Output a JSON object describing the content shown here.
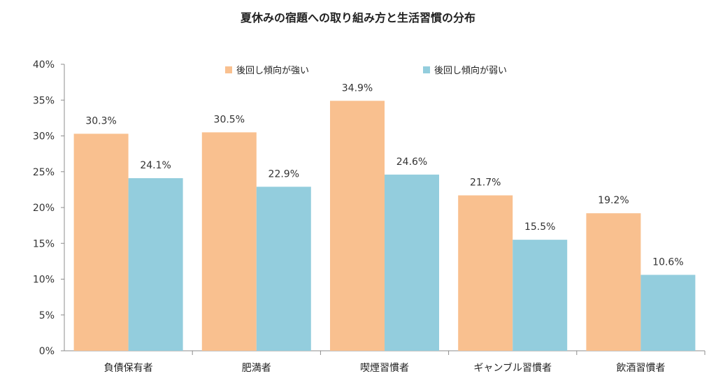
{
  "chart_data": {
    "type": "bar",
    "title": "夏休みの宿題への取り組み方と生活習慣の分布",
    "categories": [
      "負債保有者",
      "肥満者",
      "喫煙習慣者",
      "ギャンブル習慣者",
      "飲酒習慣者"
    ],
    "series": [
      {
        "name": "後回し傾向が強い",
        "values": [
          30.3,
          30.5,
          34.9,
          21.7,
          19.2
        ],
        "color": "#F9C08F"
      },
      {
        "name": "後回し傾向が弱い",
        "values": [
          24.1,
          22.9,
          24.6,
          15.5,
          10.6
        ],
        "color": "#93CDDD"
      }
    ],
    "ylim": [
      0,
      40
    ],
    "y_ticks": [
      "0%",
      "5%",
      "10%",
      "15%",
      "20%",
      "25%",
      "30%",
      "35%",
      "40%"
    ],
    "value_suffix": "%",
    "grid": false,
    "legend_position": "top"
  }
}
